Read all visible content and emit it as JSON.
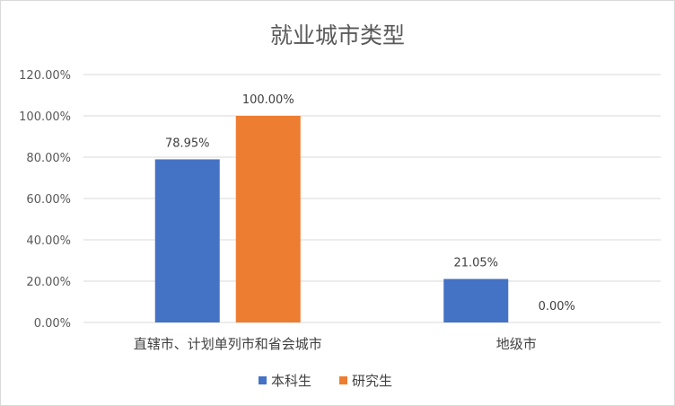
{
  "chart_data": {
    "type": "bar",
    "title": "就业城市类型",
    "categories": [
      "直辖市、计划单列市和省会城市",
      "地级市"
    ],
    "series": [
      {
        "name": "本科生",
        "values": [
          78.95,
          21.05
        ],
        "labels": [
          "78.95%",
          "21.05%"
        ],
        "color": "#4472C4"
      },
      {
        "name": "研究生",
        "values": [
          100.0,
          0.0
        ],
        "labels": [
          "100.00%",
          "0.00%"
        ],
        "color": "#ED7D31"
      }
    ],
    "ylim": [
      0,
      120
    ],
    "yticks": [
      0,
      20,
      40,
      60,
      80,
      100,
      120
    ],
    "ytick_labels": [
      "0.00%",
      "20.00%",
      "40.00%",
      "60.00%",
      "80.00%",
      "100.00%",
      "120.00%"
    ],
    "xlabel": "",
    "ylabel": "",
    "grid": true,
    "gridline_color": "#d9d9d9",
    "legend_position": "bottom"
  }
}
